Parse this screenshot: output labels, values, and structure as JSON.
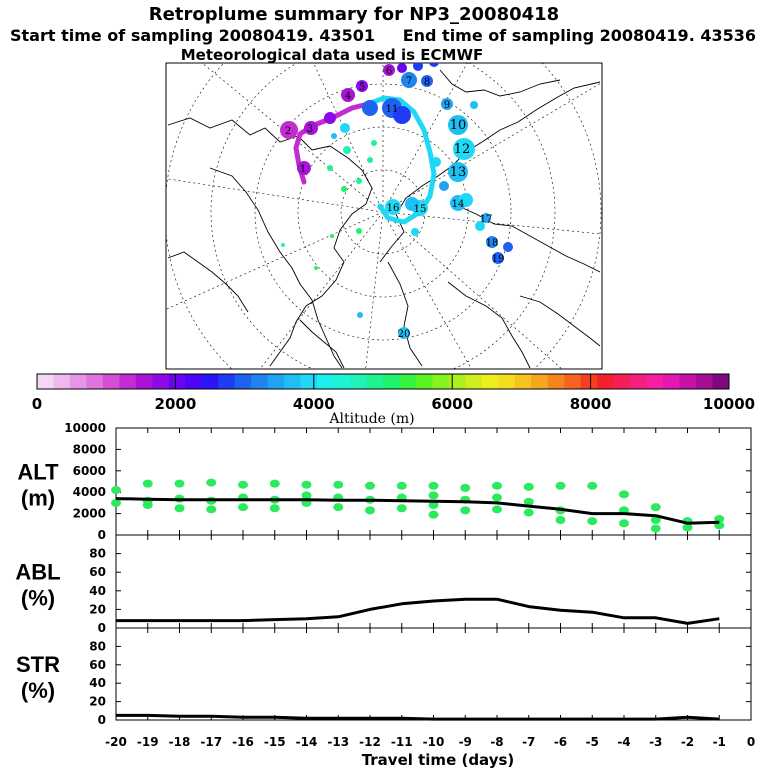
{
  "header": {
    "title": "Retroplume summary for NP3_20080418",
    "start": "Start time of sampling 20080419. 43501",
    "end": "End time of sampling 20080419. 43536",
    "met": "Meteorological data used is ECMWF"
  },
  "colorbar": {
    "label": "Altitude (m)",
    "min": 0,
    "max": 10000,
    "ticks": [
      "0",
      "2000",
      "4000",
      "6000",
      "8000",
      "10000"
    ],
    "colors": [
      "#f5d6f5",
      "#efb8ef",
      "#e796e7",
      "#df74df",
      "#d34fd3",
      "#c22cd0",
      "#a913d8",
      "#8c0ae6",
      "#6a06ef",
      "#4c05f5",
      "#2b14f6",
      "#1e3df2",
      "#1f62ef",
      "#1f83f0",
      "#1fa3f2",
      "#1fbff4",
      "#1fd8f6",
      "#1fedf0",
      "#1ff3d5",
      "#1ff3b7",
      "#1ff391",
      "#1ff36a",
      "#35f33f",
      "#59f31f",
      "#84f31f",
      "#abef1f",
      "#cfee1f",
      "#eeee1f",
      "#f5dc1f",
      "#f5c21f",
      "#f5a51f",
      "#f5841f",
      "#f5631f",
      "#f53f1f",
      "#f51f30",
      "#f51f58",
      "#f51f7e",
      "#f51fa3",
      "#e318b0",
      "#c611a5",
      "#a50d94",
      "#7e0a7d"
    ]
  },
  "map_labels": [
    "1",
    "2",
    "3",
    "4",
    "5",
    "6",
    "7",
    "8",
    "9",
    "10",
    "11",
    "12",
    "13",
    "14",
    "15",
    "16",
    "17",
    "18",
    "19",
    "20"
  ],
  "chart_data": [
    {
      "type": "scatter",
      "name": "ALT",
      "ylabel": [
        "ALT",
        "(m)"
      ],
      "xlabel": "Travel time (days)",
      "xlim": [
        -20,
        0
      ],
      "ylim": [
        0,
        10000
      ],
      "yticks": [
        "0",
        "2000",
        "4000",
        "6000",
        "8000",
        "10000"
      ],
      "xticks": [
        "-20",
        "-19",
        "-18",
        "-17",
        "-16",
        "-15",
        "-14",
        "-13",
        "-12",
        "-11",
        "-10",
        "-9",
        "-8",
        "-7",
        "-6",
        "-5",
        "-4",
        "-3",
        "-2",
        "-1",
        "0"
      ],
      "line": {
        "x": [
          -20,
          -19,
          -18,
          -17,
          -16,
          -15,
          -14,
          -13,
          -12,
          -11,
          -10,
          -9,
          -8,
          -7,
          -6,
          -5,
          -4,
          -3,
          -2,
          -1
        ],
        "y": [
          3400,
          3350,
          3300,
          3300,
          3300,
          3300,
          3300,
          3250,
          3250,
          3200,
          3150,
          3100,
          3000,
          2700,
          2400,
          2000,
          2000,
          1800,
          1100,
          1200
        ]
      },
      "points": [
        {
          "x": -20,
          "y": 4200
        },
        {
          "x": -20,
          "y": 3000
        },
        {
          "x": -19,
          "y": 4800
        },
        {
          "x": -19,
          "y": 3200
        },
        {
          "x": -19,
          "y": 2800
        },
        {
          "x": -18,
          "y": 4800
        },
        {
          "x": -18,
          "y": 3400
        },
        {
          "x": -18,
          "y": 2500
        },
        {
          "x": -17,
          "y": 4900
        },
        {
          "x": -17,
          "y": 3200
        },
        {
          "x": -17,
          "y": 2400
        },
        {
          "x": -16,
          "y": 4700
        },
        {
          "x": -16,
          "y": 3500
        },
        {
          "x": -16,
          "y": 2600
        },
        {
          "x": -15,
          "y": 4800
        },
        {
          "x": -15,
          "y": 3300
        },
        {
          "x": -15,
          "y": 2500
        },
        {
          "x": -14,
          "y": 4700
        },
        {
          "x": -14,
          "y": 3700
        },
        {
          "x": -14,
          "y": 3000
        },
        {
          "x": -13,
          "y": 4700
        },
        {
          "x": -13,
          "y": 3500
        },
        {
          "x": -13,
          "y": 2600
        },
        {
          "x": -12,
          "y": 4600
        },
        {
          "x": -12,
          "y": 3300
        },
        {
          "x": -12,
          "y": 2300
        },
        {
          "x": -11,
          "y": 4600
        },
        {
          "x": -11,
          "y": 3500
        },
        {
          "x": -11,
          "y": 2500
        },
        {
          "x": -10,
          "y": 4600
        },
        {
          "x": -10,
          "y": 3700
        },
        {
          "x": -10,
          "y": 2800
        },
        {
          "x": -10,
          "y": 1900
        },
        {
          "x": -9,
          "y": 4400
        },
        {
          "x": -9,
          "y": 3300
        },
        {
          "x": -9,
          "y": 2300
        },
        {
          "x": -8,
          "y": 4600
        },
        {
          "x": -8,
          "y": 3500
        },
        {
          "x": -8,
          "y": 2400
        },
        {
          "x": -7,
          "y": 4500
        },
        {
          "x": -7,
          "y": 3100
        },
        {
          "x": -7,
          "y": 2100
        },
        {
          "x": -6,
          "y": 4600
        },
        {
          "x": -6,
          "y": 2300
        },
        {
          "x": -6,
          "y": 1400
        },
        {
          "x": -5,
          "y": 4600
        },
        {
          "x": -5,
          "y": 1300
        },
        {
          "x": -4,
          "y": 3800
        },
        {
          "x": -4,
          "y": 2300
        },
        {
          "x": -4,
          "y": 1100
        },
        {
          "x": -3,
          "y": 2600
        },
        {
          "x": -3,
          "y": 1400
        },
        {
          "x": -3,
          "y": 600
        },
        {
          "x": -2,
          "y": 1300
        },
        {
          "x": -2,
          "y": 700
        },
        {
          "x": -1,
          "y": 1500
        },
        {
          "x": -1,
          "y": 900
        }
      ]
    },
    {
      "type": "line",
      "name": "ABL",
      "ylabel": [
        "ABL",
        "(%)"
      ],
      "xlim": [
        -20,
        0
      ],
      "ylim": [
        0,
        100
      ],
      "yticks": [
        "0",
        "20",
        "40",
        "60",
        "80"
      ],
      "x": [
        -20,
        -19,
        -18,
        -17,
        -16,
        -15,
        -14,
        -13,
        -12,
        -11,
        -10,
        -9,
        -8,
        -7,
        -6,
        -5,
        -4,
        -3,
        -2,
        -1
      ],
      "y": [
        8,
        8,
        8,
        8,
        8,
        9,
        10,
        12,
        20,
        26,
        29,
        31,
        31,
        23,
        19,
        17,
        11,
        11,
        5,
        10
      ]
    },
    {
      "type": "line",
      "name": "STR",
      "ylabel": [
        "STR",
        "(%)"
      ],
      "xlim": [
        -20,
        0
      ],
      "ylim": [
        0,
        100
      ],
      "yticks": [
        "0",
        "20",
        "40",
        "60",
        "80"
      ],
      "x": [
        -20,
        -19,
        -18,
        -17,
        -16,
        -15,
        -14,
        -13,
        -12,
        -11,
        -10,
        -9,
        -8,
        -7,
        -6,
        -5,
        -4,
        -3,
        -2,
        -1
      ],
      "y": [
        5,
        5,
        4,
        4,
        3,
        3,
        2,
        2,
        2,
        2,
        1,
        1,
        1,
        1,
        1,
        1,
        1,
        1,
        3,
        1
      ]
    }
  ]
}
